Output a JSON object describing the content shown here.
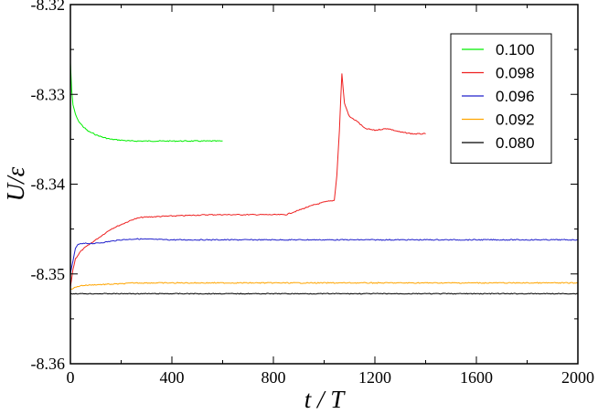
{
  "chart_data": {
    "type": "line",
    "xlabel": "t / T",
    "ylabel": "U/ε",
    "xlim": [
      0,
      2000
    ],
    "ylim": [
      -8.36,
      -8.32
    ],
    "x_ticks": [
      0,
      400,
      800,
      1200,
      1600,
      2000
    ],
    "x_tick_labels": [
      "0",
      "400",
      "800",
      "1200",
      "1600",
      "2000"
    ],
    "y_ticks": [
      -8.36,
      -8.35,
      -8.34,
      -8.33,
      -8.32
    ],
    "y_tick_labels": [
      "-8.36",
      "-8.35",
      "-8.34",
      "-8.33",
      "-8.32"
    ],
    "legend_position": "top-right",
    "grid": false,
    "series": [
      {
        "name": "0.100",
        "color": "#00ee00",
        "x": [
          0,
          5,
          10,
          20,
          30,
          50,
          70,
          100,
          130,
          160,
          200,
          240,
          300,
          400,
          500,
          600
        ],
        "y": [
          -8.3265,
          -8.3295,
          -8.3312,
          -8.3322,
          -8.3329,
          -8.3336,
          -8.3341,
          -8.3345,
          -8.3348,
          -8.335,
          -8.3351,
          -8.3352,
          -8.3352,
          -8.3352,
          -8.3352,
          -8.3352
        ]
      },
      {
        "name": "0.098",
        "color": "#ee2020",
        "x": [
          0,
          10,
          20,
          40,
          60,
          80,
          120,
          160,
          200,
          250,
          280,
          350,
          450,
          550,
          650,
          750,
          850,
          900,
          950,
          1000,
          1040,
          1050,
          1060,
          1070,
          1080,
          1100,
          1130,
          1160,
          1200,
          1250,
          1300,
          1350,
          1400
        ],
        "y": [
          -8.3515,
          -8.3495,
          -8.3483,
          -8.3475,
          -8.347,
          -8.3466,
          -8.3458,
          -8.345,
          -8.3445,
          -8.3439,
          -8.3437,
          -8.3436,
          -8.3435,
          -8.3434,
          -8.3434,
          -8.3434,
          -8.3434,
          -8.3429,
          -8.3424,
          -8.342,
          -8.3418,
          -8.339,
          -8.334,
          -8.3277,
          -8.331,
          -8.3325,
          -8.333,
          -8.3338,
          -8.334,
          -8.3338,
          -8.3342,
          -8.3344,
          -8.3344
        ]
      },
      {
        "name": "0.096",
        "color": "#2020cc",
        "x": [
          0,
          10,
          20,
          30,
          60,
          100,
          150,
          200,
          260,
          400,
          600,
          1000,
          1400,
          1800,
          2000
        ],
        "y": [
          -8.35,
          -8.3485,
          -8.3472,
          -8.3467,
          -8.3466,
          -8.3466,
          -8.3464,
          -8.3462,
          -8.3461,
          -8.3462,
          -8.3462,
          -8.3462,
          -8.3462,
          -8.3462,
          -8.3462
        ]
      },
      {
        "name": "0.092",
        "color": "#ffa500",
        "x": [
          0,
          20,
          40,
          100,
          200,
          250,
          400,
          800,
          1200,
          1600,
          2000
        ],
        "y": [
          -8.3517,
          -8.3515,
          -8.3513,
          -8.3512,
          -8.3511,
          -8.351,
          -8.351,
          -8.351,
          -8.351,
          -8.351,
          -8.351
        ]
      },
      {
        "name": "0.080",
        "color": "#000000",
        "x": [
          0,
          200,
          400,
          800,
          1200,
          1600,
          2000
        ],
        "y": [
          -8.3522,
          -8.3522,
          -8.3522,
          -8.3522,
          -8.3522,
          -8.3522,
          -8.3522
        ]
      }
    ]
  }
}
